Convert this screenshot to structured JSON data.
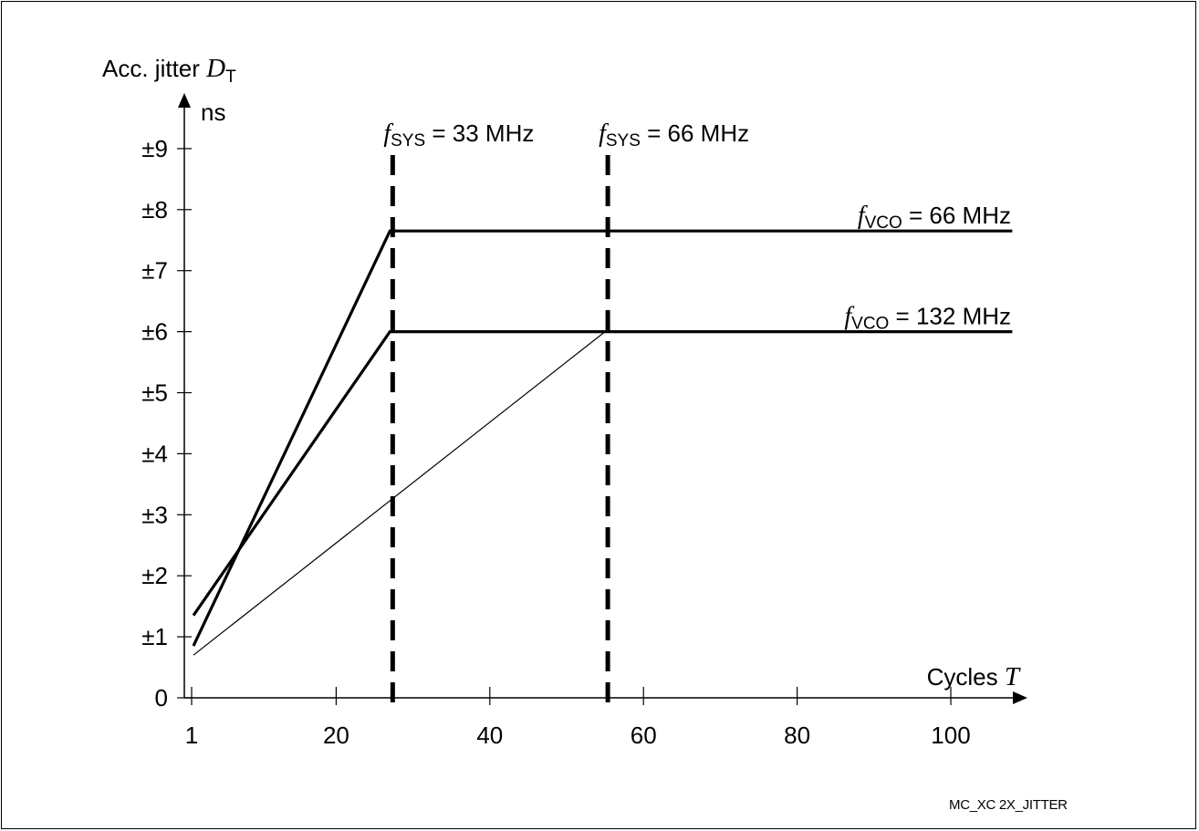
{
  "chart_data": {
    "type": "line",
    "ylabel": {
      "prefix": "Acc. jitter ",
      "symbol": "D",
      "subscript": "T",
      "unit": "ns"
    },
    "xlabel": {
      "prefix": "Cycles ",
      "symbol": "T"
    },
    "x_ticks": [
      1,
      20,
      40,
      60,
      80,
      100
    ],
    "x_tick_labels": [
      "1",
      "20",
      "40",
      "60",
      "80",
      "100"
    ],
    "y_ticks": [
      0,
      1,
      2,
      3,
      4,
      5,
      6,
      7,
      8,
      9
    ],
    "y_tick_labels": [
      "0",
      "±1",
      "±2",
      "±3",
      "±4",
      "±5",
      "±6",
      "±7",
      "±8",
      "±9"
    ],
    "xlim": [
      0,
      108
    ],
    "ylim": [
      0,
      9.6
    ],
    "grid": false,
    "series": [
      {
        "name": "fVCO = 66 MHz",
        "weight": "thick",
        "x": [
          1,
          27,
          108
        ],
        "y": [
          0.85,
          7.65,
          7.65
        ]
      },
      {
        "name": "fVCO = 132 MHz",
        "weight": "thick",
        "x": [
          1,
          27,
          108
        ],
        "y": [
          1.35,
          6.0,
          6.0
        ]
      },
      {
        "weight": "thin",
        "x": [
          1,
          55
        ],
        "y": [
          0.7,
          6.0
        ]
      }
    ],
    "series_labels": [
      {
        "symbol": "f",
        "subscript": "VCO",
        "text": " = 66 MHz",
        "x": 108,
        "y": 7.65
      },
      {
        "symbol": "f",
        "subscript": "VCO",
        "text": " = 132 MHz",
        "x": 108,
        "y": 6.0
      }
    ],
    "vlines": [
      {
        "x": 27,
        "symbol": "f",
        "subscript": "SYS",
        "text": " = 33 MHz",
        "style": "dashed"
      },
      {
        "x": 55,
        "symbol": "f",
        "subscript": "SYS",
        "text": " = 66 MHz",
        "style": "dashed"
      }
    ]
  },
  "figure_id": "MC_XC 2X_JITTER"
}
